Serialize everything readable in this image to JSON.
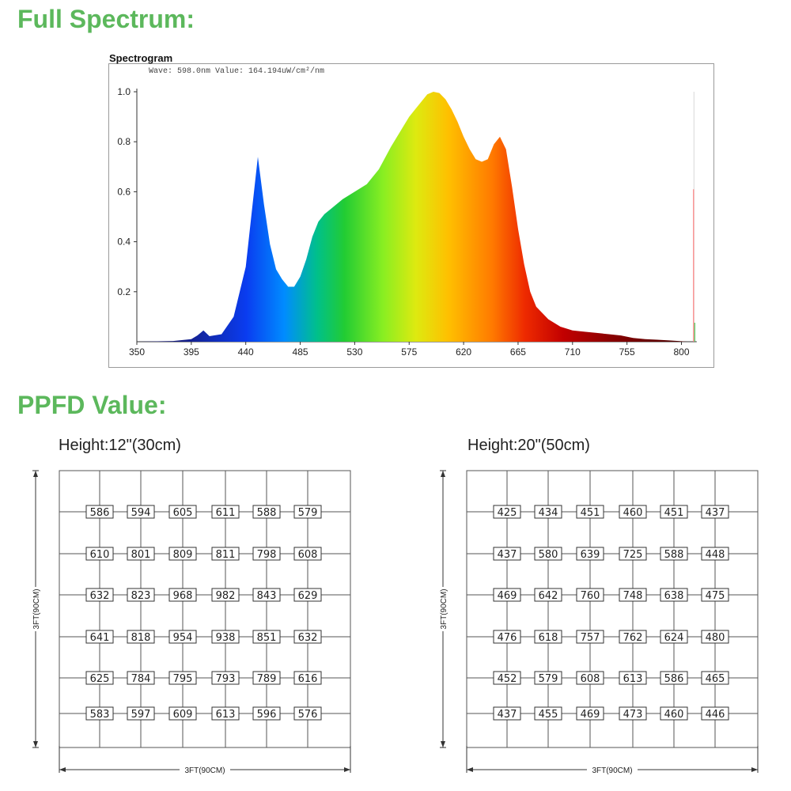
{
  "headings": {
    "spectrum": "Full Spectrum:",
    "ppfd": "PPFD Value:"
  },
  "chart_data": [
    {
      "type": "area",
      "title": "Spectrogram",
      "readout": "Wave: 598.0nm Value: 164.194uW/cm²/nm",
      "xlabel": "",
      "ylabel": "",
      "xlim": [
        350,
        810
      ],
      "ylim": [
        0,
        1.0
      ],
      "xticks": [
        350,
        395,
        440,
        485,
        530,
        575,
        620,
        665,
        710,
        755,
        800
      ],
      "yticks": [
        0.2,
        0.4,
        0.6,
        0.8,
        1.0
      ],
      "ytick_labels": [
        "0.2",
        "0.4",
        "0.6",
        "0.8",
        "1.0"
      ],
      "x": [
        350,
        380,
        395,
        400,
        405,
        410,
        420,
        430,
        440,
        445,
        450,
        455,
        460,
        465,
        470,
        475,
        480,
        485,
        490,
        495,
        500,
        505,
        510,
        520,
        530,
        540,
        550,
        560,
        570,
        575,
        580,
        585,
        590,
        595,
        600,
        605,
        610,
        615,
        620,
        625,
        630,
        635,
        640,
        645,
        650,
        655,
        660,
        665,
        670,
        675,
        680,
        690,
        700,
        710,
        720,
        730,
        740,
        750,
        760,
        770,
        780,
        790,
        800,
        805
      ],
      "values": [
        0.0,
        0.003,
        0.01,
        0.025,
        0.045,
        0.022,
        0.03,
        0.1,
        0.3,
        0.52,
        0.74,
        0.55,
        0.39,
        0.29,
        0.25,
        0.22,
        0.22,
        0.26,
        0.33,
        0.42,
        0.48,
        0.51,
        0.53,
        0.57,
        0.6,
        0.63,
        0.69,
        0.78,
        0.86,
        0.9,
        0.93,
        0.96,
        0.99,
        1.0,
        0.995,
        0.97,
        0.93,
        0.88,
        0.82,
        0.77,
        0.73,
        0.72,
        0.73,
        0.79,
        0.82,
        0.77,
        0.62,
        0.45,
        0.31,
        0.2,
        0.14,
        0.09,
        0.06,
        0.045,
        0.04,
        0.035,
        0.03,
        0.025,
        0.015,
        0.01,
        0.008,
        0.005,
        0.002,
        0.0
      ],
      "markers": [
        {
          "x": 810,
          "value": 1.0
        },
        {
          "x": 810,
          "value": 0.61
        }
      ]
    },
    {
      "type": "table",
      "title": "Height:12\"(30cm)",
      "width_label": "3FT(90CM)",
      "height_label": "3FT(90CM)",
      "rows": [
        [
          "586",
          "594",
          "605",
          "611",
          "588",
          "579"
        ],
        [
          "610",
          "801",
          "809",
          "811",
          "798",
          "608"
        ],
        [
          "632",
          "823",
          "968",
          "982",
          "843",
          "629"
        ],
        [
          "641",
          "818",
          "954",
          "938",
          "851",
          "632"
        ],
        [
          "625",
          "784",
          "795",
          "793",
          "789",
          "616"
        ],
        [
          "583",
          "597",
          "609",
          "613",
          "596",
          "576"
        ]
      ]
    },
    {
      "type": "table",
      "title": "Height:20\"(50cm)",
      "width_label": "3FT(90CM)",
      "height_label": "3FT(90CM)",
      "rows": [
        [
          "425",
          "434",
          "451",
          "460",
          "451",
          "437"
        ],
        [
          "437",
          "580",
          "639",
          "725",
          "588",
          "448"
        ],
        [
          "469",
          "642",
          "760",
          "748",
          "638",
          "475"
        ],
        [
          "476",
          "618",
          "757",
          "762",
          "624",
          "480"
        ],
        [
          "452",
          "579",
          "608",
          "613",
          "586",
          "465"
        ],
        [
          "437",
          "455",
          "469",
          "473",
          "460",
          "446"
        ]
      ]
    }
  ]
}
